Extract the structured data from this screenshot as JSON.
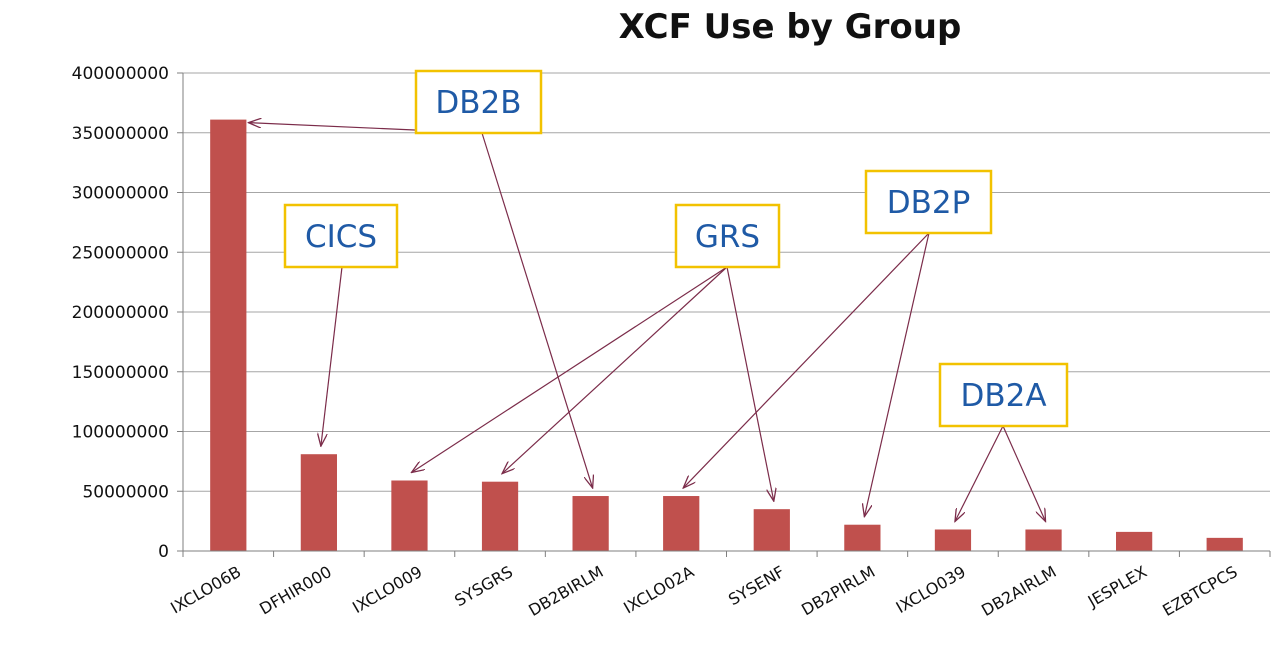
{
  "colors": {
    "bar": "#c0504d",
    "gridline": "#a6a6a6",
    "axis": "#7f7f7f",
    "callout_border": "#f2c200",
    "callout_text": "#1f5aa6",
    "arrow": "#7b2c4a"
  },
  "chart_data": {
    "type": "bar",
    "title": "XCF Use by Group",
    "xlabel": "",
    "ylabel": "",
    "ylim": [
      0,
      400000000
    ],
    "yticks": [
      "0",
      "50000000",
      "100000000",
      "150000000",
      "200000000",
      "250000000",
      "300000000",
      "350000000",
      "400000000"
    ],
    "grid": true,
    "categories": [
      "IXCLO06B",
      "DFHIR000",
      "IXCLO009",
      "SYSGRS",
      "DB2BIRLM",
      "IXCLO02A",
      "SYSENF",
      "DB2PIRLM",
      "IXCLO039",
      "DB2AIRLM",
      "JESPLEX",
      "EZBTCPCS"
    ],
    "values": [
      361000000,
      81000000,
      59000000,
      58000000,
      46000000,
      46000000,
      35000000,
      22000000,
      18000000,
      18000000,
      16000000,
      11000000
    ],
    "annotations": [
      {
        "label": "DB2B",
        "targets": [
          "IXCLO06B",
          "DB2BIRLM"
        ]
      },
      {
        "label": "CICS",
        "targets": [
          "DFHIR000"
        ]
      },
      {
        "label": "GRS",
        "targets": [
          "IXCLO009",
          "SYSGRS",
          "SYSENF"
        ]
      },
      {
        "label": "DB2P",
        "targets": [
          "IXCLO02A",
          "DB2PIRLM"
        ]
      },
      {
        "label": "DB2A",
        "targets": [
          "IXCLO039",
          "DB2AIRLM"
        ]
      }
    ]
  }
}
